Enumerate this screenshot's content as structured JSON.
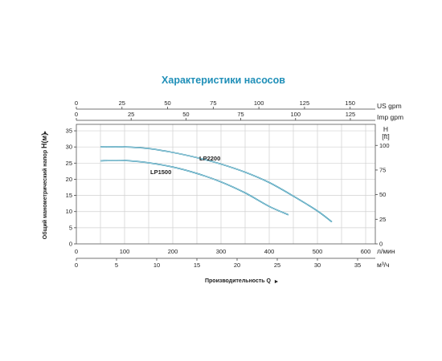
{
  "chart_data": {
    "type": "line",
    "title": "Характеристики насосов",
    "xlabel": "Производительность Q",
    "ylabel_main": "H(м)",
    "ylabel_prefix": "Общий манометрический напор",
    "right_axis_label_line1": "H",
    "right_axis_label_line2": "[ft]",
    "right_ticks": [
      0,
      25,
      50,
      75,
      100
    ],
    "top_axes": [
      {
        "unit": "US gpm",
        "ticks": [
          0,
          25,
          50,
          75,
          100,
          125,
          150
        ]
      },
      {
        "unit": "Imp gpm",
        "ticks": [
          0,
          25,
          50,
          75,
          100,
          125
        ]
      }
    ],
    "bottom_axes": [
      {
        "unit": "л/мин",
        "ticks": [
          0,
          100,
          200,
          300,
          400,
          500,
          600
        ]
      },
      {
        "unit": "м³/ч",
        "ticks": [
          0,
          5,
          10,
          15,
          20,
          25,
          30,
          35
        ]
      }
    ],
    "xlim_lmin": [
      0,
      620
    ],
    "ylim": [
      0,
      37
    ],
    "y_ticks": [
      0,
      5,
      10,
      15,
      20,
      25,
      30,
      35
    ],
    "grid": true,
    "curve_color": "#1a87a8",
    "series": [
      {
        "name": "LP2200",
        "points": [
          [
            50,
            30
          ],
          [
            100,
            30
          ],
          [
            150,
            29.5
          ],
          [
            200,
            28.3
          ],
          [
            250,
            26.7
          ],
          [
            300,
            24.7
          ],
          [
            350,
            22.2
          ],
          [
            400,
            19
          ],
          [
            450,
            14.8
          ],
          [
            500,
            10.2
          ],
          [
            530,
            6.8
          ]
        ]
      },
      {
        "name": "LP1500",
        "points": [
          [
            50,
            25.7
          ],
          [
            100,
            25.8
          ],
          [
            150,
            25.1
          ],
          [
            200,
            23.8
          ],
          [
            250,
            21.8
          ],
          [
            300,
            19.2
          ],
          [
            350,
            15.8
          ],
          [
            400,
            11.6
          ],
          [
            440,
            9
          ]
        ]
      }
    ]
  }
}
